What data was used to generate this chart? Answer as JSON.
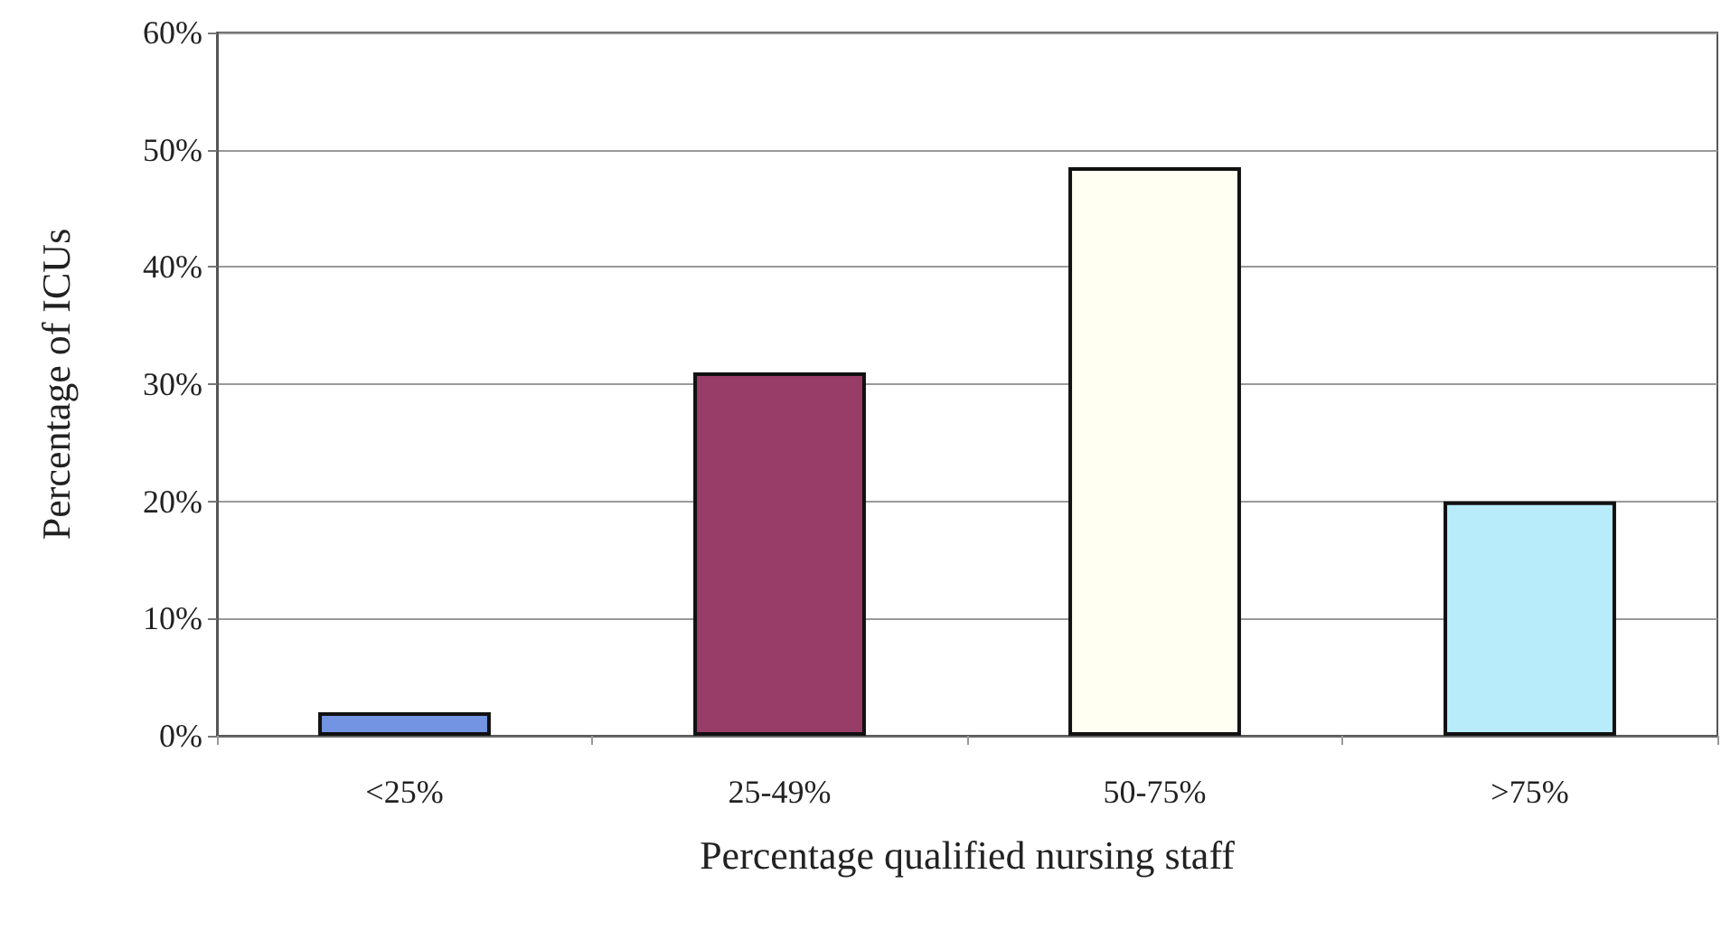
{
  "chart_data": {
    "type": "bar",
    "xlabel": "Percentage qualified nursing staff",
    "ylabel": "Percentage of ICUs",
    "categories": [
      "<25%",
      "25-49%",
      "50-75%",
      ">75%"
    ],
    "values": [
      2,
      31,
      48.5,
      20
    ],
    "colors": [
      "#7393e3",
      "#983c68",
      "#fffff2",
      "#b8ecfa"
    ],
    "ylim": [
      0,
      60
    ],
    "yticks": [
      {
        "value": 0,
        "label": "0%"
      },
      {
        "value": 10,
        "label": "10%"
      },
      {
        "value": 20,
        "label": "20%"
      },
      {
        "value": 30,
        "label": "30%"
      },
      {
        "value": 40,
        "label": "40%"
      },
      {
        "value": 50,
        "label": "50%"
      },
      {
        "value": 60,
        "label": "60%"
      }
    ],
    "grid": "y"
  }
}
